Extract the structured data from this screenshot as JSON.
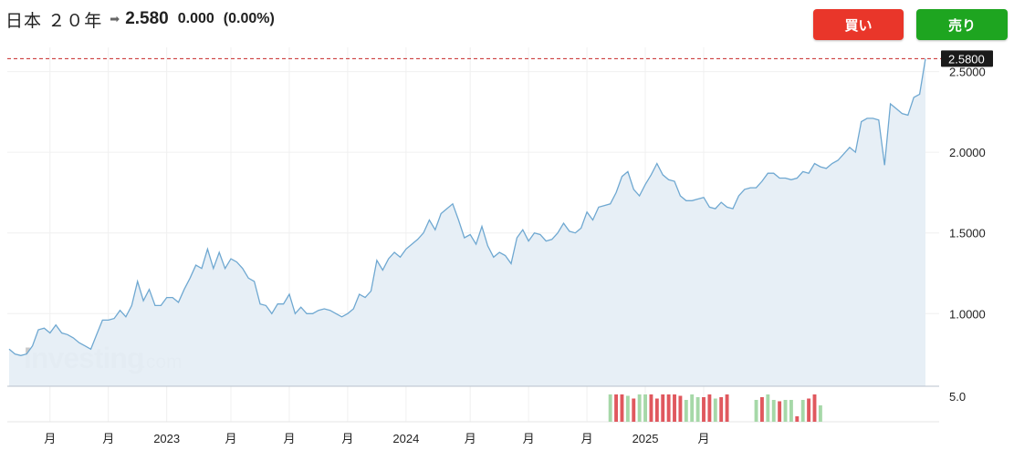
{
  "header": {
    "title": "日本 ２０年",
    "arrow_icon": "right-arrow-icon",
    "price": "2.580",
    "change": "0.000",
    "change_pct": "(0.00%)"
  },
  "buttons": {
    "buy_label": "買い",
    "sell_label": "売り",
    "buy_color": "#e9362a",
    "sell_color": "#1ea520"
  },
  "watermark": {
    "brand": "Investing",
    "suffix": ".com"
  },
  "chart_data": {
    "type": "area",
    "series_color": "#6fa8d1",
    "fill_color": "#e6eef6",
    "last_value": 2.58,
    "last_value_label": "2.5800",
    "last_line_color": "#c62828",
    "ylim": [
      0.55,
      2.65
    ],
    "y_ticks": [
      {
        "value": 2.5,
        "label": "2.5000"
      },
      {
        "value": 2.0,
        "label": "2.0000"
      },
      {
        "value": 1.5,
        "label": "1.5000"
      },
      {
        "value": 1.0,
        "label": "1.0000"
      }
    ],
    "x_ticks": [
      {
        "index": 7,
        "label": "月"
      },
      {
        "index": 17,
        "label": "月"
      },
      {
        "index": 27,
        "label": "2023"
      },
      {
        "index": 38,
        "label": "月"
      },
      {
        "index": 48,
        "label": "月"
      },
      {
        "index": 58,
        "label": "月"
      },
      {
        "index": 68,
        "label": "2024"
      },
      {
        "index": 79,
        "label": "月"
      },
      {
        "index": 89,
        "label": "月"
      },
      {
        "index": 99,
        "label": "月"
      },
      {
        "index": 109,
        "label": "2025"
      },
      {
        "index": 119,
        "label": "月"
      }
    ],
    "values": [
      0.78,
      0.75,
      0.74,
      0.75,
      0.8,
      0.9,
      0.91,
      0.88,
      0.93,
      0.88,
      0.87,
      0.85,
      0.82,
      0.8,
      0.78,
      0.87,
      0.96,
      0.96,
      0.97,
      1.02,
      0.98,
      1.05,
      1.2,
      1.08,
      1.15,
      1.05,
      1.05,
      1.1,
      1.1,
      1.07,
      1.15,
      1.22,
      1.3,
      1.28,
      1.4,
      1.28,
      1.38,
      1.28,
      1.34,
      1.32,
      1.28,
      1.22,
      1.2,
      1.06,
      1.05,
      1.0,
      1.06,
      1.06,
      1.12,
      1.0,
      1.04,
      1.0,
      1.0,
      1.02,
      1.03,
      1.02,
      1.0,
      0.98,
      1.0,
      1.03,
      1.12,
      1.1,
      1.14,
      1.33,
      1.27,
      1.34,
      1.38,
      1.35,
      1.4,
      1.43,
      1.46,
      1.5,
      1.58,
      1.52,
      1.62,
      1.65,
      1.68,
      1.58,
      1.47,
      1.49,
      1.43,
      1.54,
      1.42,
      1.35,
      1.38,
      1.36,
      1.31,
      1.47,
      1.52,
      1.45,
      1.5,
      1.49,
      1.45,
      1.46,
      1.5,
      1.56,
      1.51,
      1.5,
      1.53,
      1.63,
      1.58,
      1.66,
      1.67,
      1.68,
      1.75,
      1.85,
      1.88,
      1.77,
      1.73,
      1.8,
      1.86,
      1.93,
      1.86,
      1.83,
      1.82,
      1.73,
      1.7,
      1.7,
      1.71,
      1.72,
      1.66,
      1.65,
      1.69,
      1.66,
      1.65,
      1.73,
      1.77,
      1.78,
      1.78,
      1.82,
      1.87,
      1.87,
      1.84,
      1.84,
      1.83,
      1.84,
      1.88,
      1.87,
      1.93,
      1.91,
      1.9,
      1.93,
      1.95,
      1.99,
      2.03,
      2.0,
      2.19,
      2.21,
      2.21,
      2.2,
      1.92,
      2.3,
      2.27,
      2.24,
      2.23,
      2.34,
      2.36,
      2.58
    ],
    "volume": {
      "tick_label": "5.0",
      "up_color": "#a6d8a8",
      "down_color": "#e0585e",
      "bars": [
        {
          "index": 103,
          "v": 1.0,
          "dir": "up"
        },
        {
          "index": 104,
          "v": 1.0,
          "dir": "down"
        },
        {
          "index": 105,
          "v": 1.0,
          "dir": "down"
        },
        {
          "index": 106,
          "v": 0.95,
          "dir": "up"
        },
        {
          "index": 107,
          "v": 0.85,
          "dir": "down"
        },
        {
          "index": 108,
          "v": 1.0,
          "dir": "up"
        },
        {
          "index": 109,
          "v": 1.0,
          "dir": "up"
        },
        {
          "index": 110,
          "v": 1.0,
          "dir": "down"
        },
        {
          "index": 111,
          "v": 0.85,
          "dir": "down"
        },
        {
          "index": 112,
          "v": 1.0,
          "dir": "down"
        },
        {
          "index": 113,
          "v": 1.0,
          "dir": "down"
        },
        {
          "index": 114,
          "v": 1.0,
          "dir": "down"
        },
        {
          "index": 115,
          "v": 0.95,
          "dir": "down"
        },
        {
          "index": 116,
          "v": 0.8,
          "dir": "up"
        },
        {
          "index": 117,
          "v": 1.0,
          "dir": "up"
        },
        {
          "index": 118,
          "v": 0.9,
          "dir": "up"
        },
        {
          "index": 119,
          "v": 0.9,
          "dir": "down"
        },
        {
          "index": 120,
          "v": 1.0,
          "dir": "down"
        },
        {
          "index": 121,
          "v": 0.85,
          "dir": "up"
        },
        {
          "index": 122,
          "v": 0.9,
          "dir": "down"
        },
        {
          "index": 123,
          "v": 1.0,
          "dir": "down"
        },
        {
          "index": 128,
          "v": 0.8,
          "dir": "up"
        },
        {
          "index": 129,
          "v": 0.9,
          "dir": "down"
        },
        {
          "index": 130,
          "v": 1.0,
          "dir": "up"
        },
        {
          "index": 131,
          "v": 0.8,
          "dir": "up"
        },
        {
          "index": 132,
          "v": 0.75,
          "dir": "down"
        },
        {
          "index": 133,
          "v": 0.8,
          "dir": "up"
        },
        {
          "index": 134,
          "v": 0.8,
          "dir": "up"
        },
        {
          "index": 135,
          "v": 0.2,
          "dir": "down"
        },
        {
          "index": 136,
          "v": 0.8,
          "dir": "up"
        },
        {
          "index": 137,
          "v": 0.85,
          "dir": "down"
        },
        {
          "index": 138,
          "v": 1.0,
          "dir": "down"
        },
        {
          "index": 139,
          "v": 0.6,
          "dir": "up"
        }
      ]
    }
  }
}
